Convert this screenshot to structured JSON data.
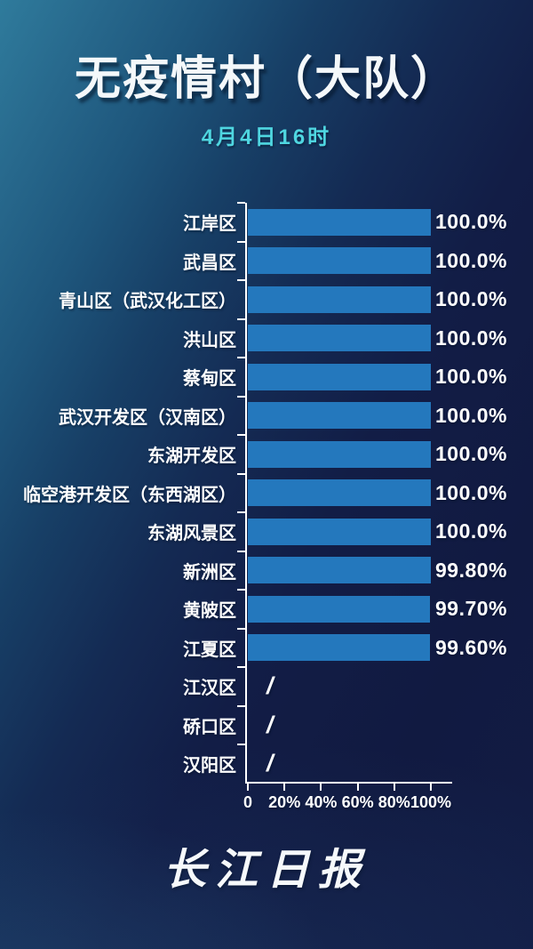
{
  "header": {
    "title": "无疫情村（大队）",
    "subtitle": "4月4日16时",
    "subtitle_color": "#4fd6e0"
  },
  "chart_data": {
    "type": "bar",
    "orientation": "horizontal",
    "title": "无疫情村（大队）",
    "subtitle": "4月4日16时",
    "categories": [
      "江岸区",
      "武昌区",
      "青山区（武汉化工区）",
      "洪山区",
      "蔡甸区",
      "武汉开发区（汉南区）",
      "东湖开发区",
      "临空港开发区（东西湖区）",
      "东湖风景区",
      "新洲区",
      "黄陂区",
      "江夏区",
      "江汉区",
      "硚口区",
      "汉阳区"
    ],
    "values": [
      100.0,
      100.0,
      100.0,
      100.0,
      100.0,
      100.0,
      100.0,
      100.0,
      100.0,
      99.8,
      99.7,
      99.6,
      null,
      null,
      null
    ],
    "value_labels": [
      "100.0%",
      "100.0%",
      "100.0%",
      "100.0%",
      "100.0%",
      "100.0%",
      "100.0%",
      "100.0%",
      "100.0%",
      "99.80%",
      "99.70%",
      "99.60%",
      "/",
      "/",
      "/"
    ],
    "null_marker": "/",
    "x_ticks": [
      "0",
      "20%",
      "40%",
      "60%",
      "80%",
      "100%"
    ],
    "x_tick_values": [
      0,
      20,
      40,
      60,
      80,
      100
    ],
    "xlim": [
      0,
      100
    ],
    "bar_color": "#2478bd",
    "axis_color": "#ffffff",
    "grid": false,
    "legend": false
  },
  "footer": {
    "brand": "长江日报"
  },
  "colors": {
    "background_teal": "#2f7b9c",
    "background_navy": "#121a42",
    "bar_blue": "#2478bd",
    "accent_cyan": "#4fd6e0",
    "text": "#ffffff"
  }
}
